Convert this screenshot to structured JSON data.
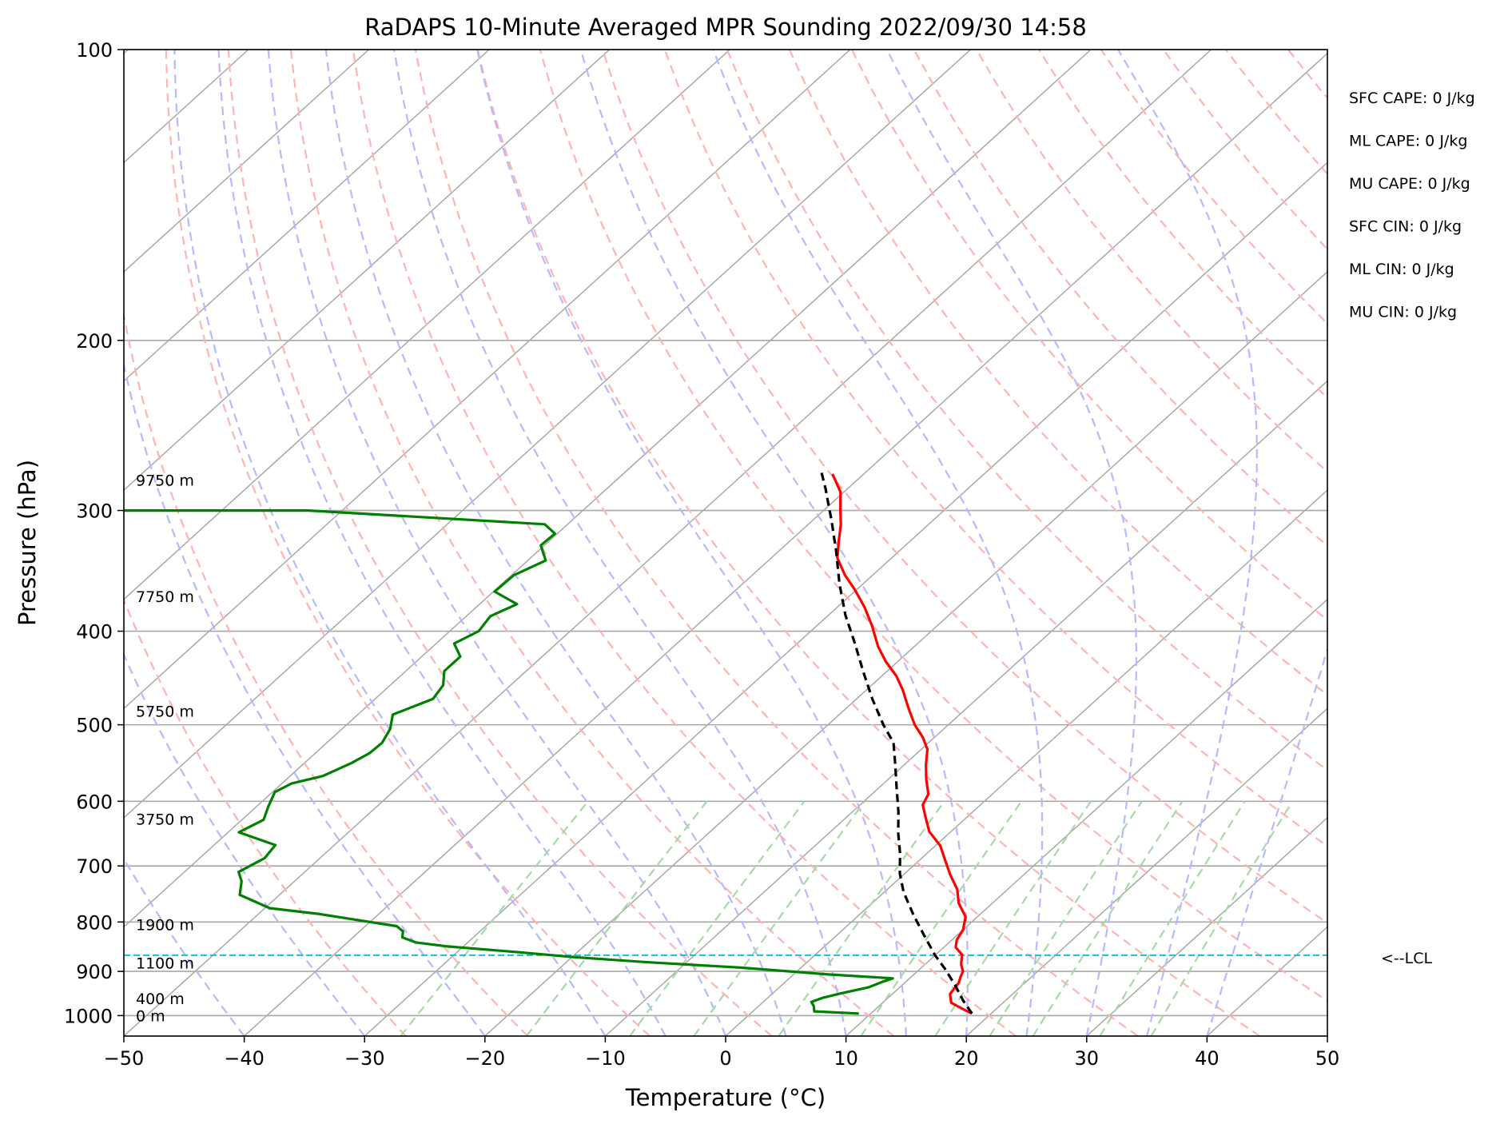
{
  "chart_data": {
    "type": "line",
    "title": "RaDAPS 10-Minute Averaged MPR Sounding 2022/09/30 14:58",
    "xlabel": "Temperature (°C)",
    "ylabel": "Pressure (hPa)",
    "xlim": [
      -50,
      50
    ],
    "ylim": [
      1050,
      100
    ],
    "y_scale": "log",
    "skew": true,
    "xticks": [
      -50,
      -40,
      -30,
      -20,
      -10,
      0,
      10,
      20,
      30,
      40,
      50
    ],
    "xtick_labels": [
      "−50",
      "−40",
      "−30",
      "−20",
      "−10",
      "0",
      "10",
      "20",
      "30",
      "40",
      "50"
    ],
    "yticks": [
      100,
      200,
      300,
      400,
      500,
      600,
      700,
      800,
      900,
      1000
    ],
    "ytick_labels": [
      "100",
      "200",
      "300",
      "400",
      "500",
      "600",
      "700",
      "800",
      "900",
      "1000"
    ],
    "grid": true,
    "series": [
      {
        "role": "temperature",
        "color": "#ff0000",
        "points": [
          [
            18.4,
            995
          ],
          [
            17.3,
            985
          ],
          [
            15.7,
            970
          ],
          [
            14.8,
            950
          ],
          [
            14.6,
            935
          ],
          [
            14.5,
            925
          ],
          [
            14.1,
            912
          ],
          [
            13.8,
            900
          ],
          [
            13.0,
            885
          ],
          [
            12.2,
            865
          ],
          [
            11.0,
            850
          ],
          [
            10.4,
            835
          ],
          [
            10.0,
            815
          ],
          [
            9.0,
            790
          ],
          [
            7.2,
            765
          ],
          [
            5.8,
            740
          ],
          [
            3.9,
            715
          ],
          [
            2.1,
            690
          ],
          [
            0.4,
            667
          ],
          [
            -1.8,
            645
          ],
          [
            -3.3,
            625
          ],
          [
            -4.8,
            605
          ],
          [
            -5.3,
            590
          ],
          [
            -6.8,
            570
          ],
          [
            -8.2,
            550
          ],
          [
            -9.5,
            530
          ],
          [
            -11.0,
            515
          ],
          [
            -12.8,
            500
          ],
          [
            -14.9,
            480
          ],
          [
            -17.0,
            460
          ],
          [
            -18.8,
            445
          ],
          [
            -21.0,
            430
          ],
          [
            -23.0,
            415
          ],
          [
            -25.4,
            395
          ],
          [
            -27.7,
            378
          ],
          [
            -30.2,
            362
          ],
          [
            -32.3,
            350
          ],
          [
            -34.5,
            336
          ],
          [
            -35.9,
            323
          ],
          [
            -37.3,
            310
          ],
          [
            -38.6,
            300
          ],
          [
            -40.3,
            287
          ],
          [
            -42.6,
            275
          ]
        ]
      },
      {
        "role": "dewpoint",
        "color": "#008000",
        "points": [
          [
            9.0,
            995
          ],
          [
            5.1,
            990
          ],
          [
            4.6,
            978
          ],
          [
            4.0,
            968
          ],
          [
            4.6,
            958
          ],
          [
            5.7,
            948
          ],
          [
            7.4,
            935
          ],
          [
            8.1,
            922
          ],
          [
            8.6,
            915
          ],
          [
            2.6,
            906
          ],
          [
            -5.0,
            892
          ],
          [
            -13.6,
            880
          ],
          [
            -19.8,
            870
          ],
          [
            -24.8,
            860
          ],
          [
            -31.3,
            848
          ],
          [
            -34.3,
            840
          ],
          [
            -35.9,
            830
          ],
          [
            -36.4,
            818
          ],
          [
            -37.4,
            808
          ],
          [
            -41.3,
            796
          ],
          [
            -44.9,
            785
          ],
          [
            -49.6,
            774
          ],
          [
            -53.3,
            750
          ],
          [
            -54.4,
            726
          ],
          [
            -55.5,
            710
          ],
          [
            -54.6,
            687
          ],
          [
            -54.9,
            666
          ],
          [
            -59.1,
            646
          ],
          [
            -58.2,
            627
          ],
          [
            -59.0,
            608
          ],
          [
            -59.8,
            587
          ],
          [
            -59.2,
            575
          ],
          [
            -57.3,
            565
          ],
          [
            -56.1,
            548
          ],
          [
            -55.5,
            535
          ],
          [
            -55.4,
            522
          ],
          [
            -56.0,
            505
          ],
          [
            -57.1,
            488
          ],
          [
            -55.2,
            470
          ],
          [
            -55.6,
            455
          ],
          [
            -56.8,
            440
          ],
          [
            -56.8,
            425
          ],
          [
            -58.5,
            412
          ],
          [
            -57.6,
            400
          ],
          [
            -58.0,
            386
          ],
          [
            -56.9,
            375
          ],
          [
            -59.9,
            364
          ],
          [
            -59.8,
            350
          ],
          [
            -58.5,
            338
          ],
          [
            -60.3,
            326
          ],
          [
            -60.2,
            317
          ],
          [
            -61.9,
            310
          ],
          [
            -82.8,
            300
          ],
          [
            -100.0,
            300
          ]
        ]
      },
      {
        "role": "parcel-profile",
        "color": "#000000",
        "style": "dashed",
        "points": [
          [
            18.4,
            995
          ],
          [
            16.5,
            965
          ],
          [
            14.4,
            930
          ],
          [
            12.1,
            895
          ],
          [
            10.0,
            866
          ],
          [
            7.2,
            825
          ],
          [
            4.4,
            785
          ],
          [
            1.6,
            745
          ],
          [
            -0.4,
            713
          ],
          [
            -2.2,
            680
          ],
          [
            -4.2,
            648
          ],
          [
            -6.2,
            615
          ],
          [
            -8.6,
            580
          ],
          [
            -10.6,
            552
          ],
          [
            -12.9,
            522
          ],
          [
            -15.4,
            500
          ],
          [
            -18.7,
            470
          ],
          [
            -22.0,
            440
          ],
          [
            -25.2,
            412
          ],
          [
            -28.6,
            385
          ],
          [
            -32.0,
            357
          ],
          [
            -35.3,
            330
          ],
          [
            -38.6,
            306
          ],
          [
            -39.8,
            298
          ],
          [
            -41.8,
            285
          ],
          [
            -44.0,
            272
          ]
        ]
      }
    ],
    "lcl_pressure": 866,
    "lcl_label": "<--LCL",
    "height_labels": [
      {
        "text": "9750 m",
        "p": 279
      },
      {
        "text": "7750 m",
        "p": 368
      },
      {
        "text": "5750 m",
        "p": 484
      },
      {
        "text": "3750 m",
        "p": 626
      },
      {
        "text": "1900 m",
        "p": 805
      },
      {
        "text": "1100 m",
        "p": 882
      },
      {
        "text": "400 m",
        "p": 960
      },
      {
        "text": "0 m",
        "p": 1000
      }
    ],
    "indices": [
      "SFC CAPE: 0 J/kg",
      "ML CAPE: 0 J/kg",
      "MU CAPE: 0 J/kg",
      "SFC CIN: 0 J/kg",
      "ML CIN: 0 J/kg",
      "MU CIN: 0 J/kg"
    ],
    "background_lines": {
      "isotherms": {
        "color": "#a8a8a8"
      },
      "dry_adiabats": {
        "color": "#ffb3b3"
      },
      "moist_adiabats": {
        "color": "#b8b8ff"
      },
      "mixing_ratios": {
        "color": "#a8d8a8"
      },
      "lcl_line": {
        "color": "#17becf"
      }
    }
  }
}
